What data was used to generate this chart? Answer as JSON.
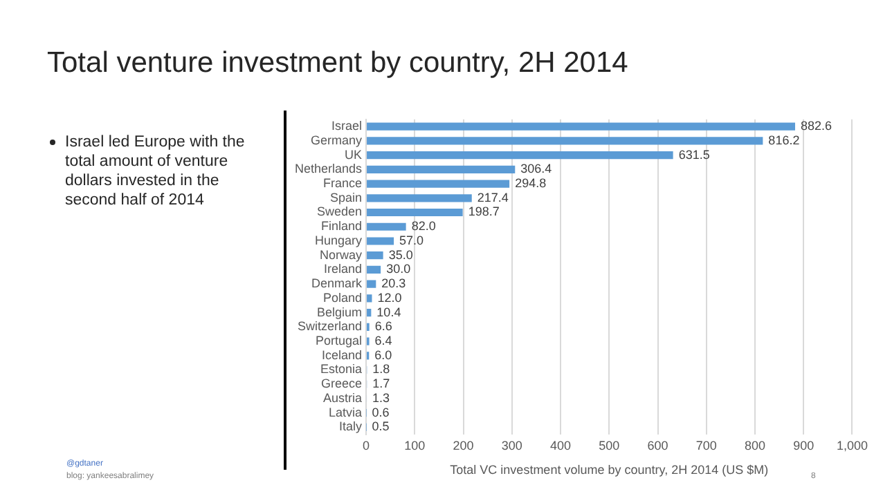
{
  "chart_data": {
    "type": "bar",
    "orientation": "horizontal",
    "title": "Total venture investment by country, 2H 2014",
    "xlabel": "Total VC investment volume by country, 2H 2014 (US $M)",
    "categories": [
      "Israel",
      "Germany",
      "UK",
      "Netherlands",
      "France",
      "Spain",
      "Sweden",
      "Finland",
      "Hungary",
      "Norway",
      "Ireland",
      "Denmark",
      "Poland",
      "Belgium",
      "Switzerland",
      "Portugal",
      "Iceland",
      "Estonia",
      "Greece",
      "Austria",
      "Latvia",
      "Italy"
    ],
    "values": [
      882.6,
      816.2,
      631.5,
      306.4,
      294.8,
      217.4,
      198.7,
      82.0,
      57.0,
      35.0,
      30.0,
      20.3,
      12.0,
      10.4,
      6.6,
      6.4,
      6.0,
      1.8,
      1.7,
      1.3,
      0.6,
      0.5
    ],
    "value_labels": [
      "882.6",
      "816.2",
      "631.5",
      "306.4",
      "294.8",
      "217.4",
      "198.7",
      "82.0",
      "57.0",
      "35.0",
      "30.0",
      "20.3",
      "12.0",
      "10.4",
      "6.6",
      "6.4",
      "6.0",
      "1.8",
      "1.7",
      "1.3",
      "0.6",
      "0.5"
    ],
    "color": "#5b9bd5",
    "xlim": [
      0,
      1000
    ],
    "xticks": [
      0,
      100,
      200,
      300,
      400,
      500,
      600,
      700,
      800,
      900,
      {
        "value": 1000,
        "label": "1,000"
      }
    ],
    "grid": "x",
    "legend": false,
    "annotations": [
      "Israel led Europe with the total amount of venture dollars invested in the second half of 2014",
      "@gdtaner",
      "blog: yankeesabralimey",
      "8"
    ]
  }
}
